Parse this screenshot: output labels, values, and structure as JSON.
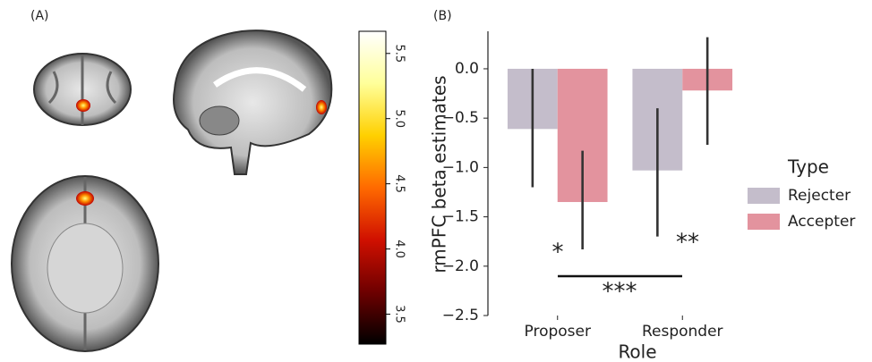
{
  "chart_data": [
    {
      "type": "colorbar",
      "panel_label": "(A)",
      "clim": [
        3.27,
        5.67
      ],
      "colormap": [
        "#000000",
        "#6e0000",
        "#d01000",
        "#ff6a00",
        "#ffd000",
        "#ffff9a",
        "#ffffff"
      ],
      "ticks": [
        {
          "value": 3.5,
          "label": "3.5"
        },
        {
          "value": 4,
          "label": "4.0"
        },
        {
          "value": 4.5,
          "label": "4.5"
        },
        {
          "value": 5,
          "label": "5.0"
        },
        {
          "value": 5.5,
          "label": "5.5"
        }
      ]
    },
    {
      "type": "bar",
      "panel_label": "(B)",
      "xlabel": "Role",
      "ylabel": "rmPFC beta estimates",
      "categories": [
        "Proposer",
        "Responder"
      ],
      "series": [
        {
          "name": "Rejecter",
          "color": "#c4bdcb",
          "values": [
            -0.61,
            -1.03
          ],
          "ci_low": [
            -1.2,
            -1.7
          ],
          "ci_high": [
            0.0,
            -0.4
          ]
        },
        {
          "name": "Accepter",
          "color": "#e3939e",
          "values": [
            -1.35,
            -0.22
          ],
          "ci_low": [
            -1.83,
            -0.77
          ],
          "ci_high": [
            -0.83,
            0.32
          ]
        }
      ],
      "legend_title": "Type",
      "legend": "right",
      "ylim": [
        -2.5,
        0.38
      ],
      "yticks": [
        {
          "value": -2.5,
          "label": "−2.5"
        },
        {
          "value": -2,
          "label": "−2.0"
        },
        {
          "value": -1.5,
          "label": "−1.5"
        },
        {
          "value": -1,
          "label": "−1.0"
        },
        {
          "value": -0.5,
          "label": "−0.5"
        },
        {
          "value": 0,
          "label": "0.0"
        }
      ],
      "annotations": [
        "*",
        "**",
        "***"
      ]
    }
  ]
}
